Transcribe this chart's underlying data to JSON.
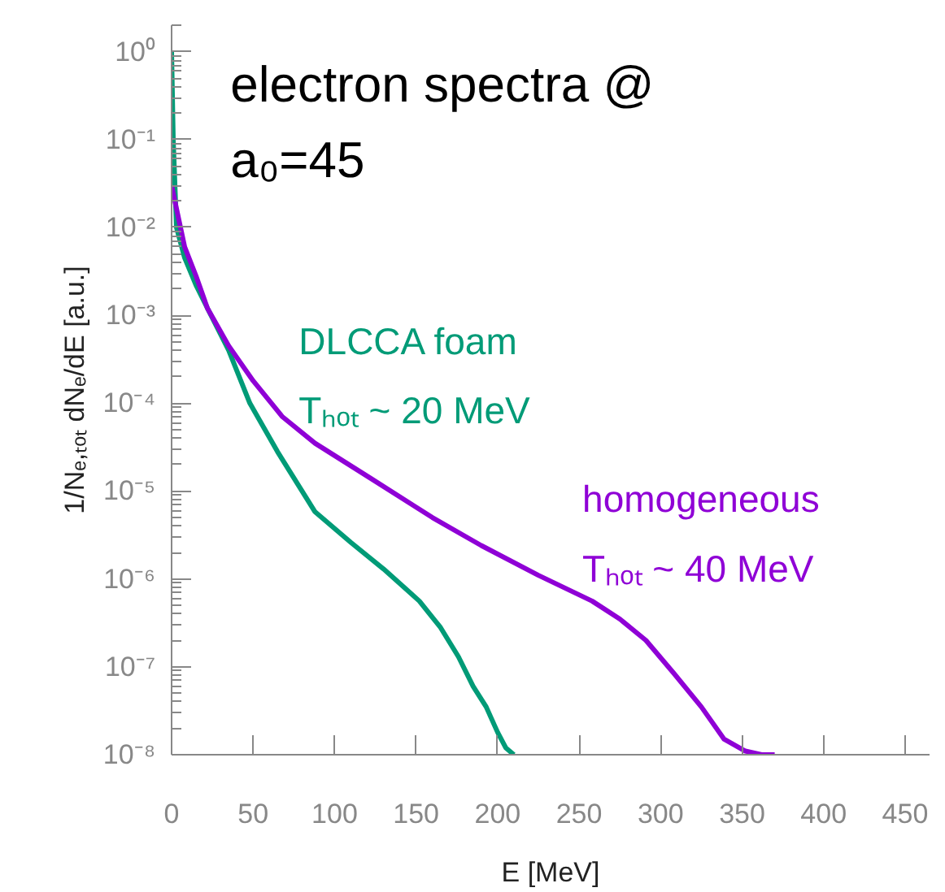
{
  "chart_data": {
    "type": "line",
    "title": "electron spectra @ a₀=45",
    "xlabel": "E [MeV]",
    "ylabel": "1/Nₑ,ₜₒₜ dNₑ/dE [a.u.]",
    "log": "y",
    "xlim": [
      0,
      465
    ],
    "ylim": [
      1e-08,
      2
    ],
    "xticks": [
      0,
      50,
      100,
      150,
      200,
      250,
      300,
      350,
      400,
      450
    ],
    "yticks": [
      {
        "value": 1,
        "label": "10⁰"
      },
      {
        "value": 0.1,
        "label": "10⁻¹"
      },
      {
        "value": 0.01,
        "label": "10⁻²"
      },
      {
        "value": 0.001,
        "label": "10⁻³"
      },
      {
        "value": 0.0001,
        "label": "10⁻⁴"
      },
      {
        "value": 1e-05,
        "label": "10⁻⁵"
      },
      {
        "value": 1e-06,
        "label": "10⁻⁶"
      },
      {
        "value": 1e-07,
        "label": "10⁻⁷"
      },
      {
        "value": 1e-08,
        "label": "10⁻⁸"
      }
    ],
    "grid": false,
    "legend": false,
    "series": [
      {
        "name": "DLCCA foam",
        "color": "#009b77",
        "x": [
          0,
          1,
          3,
          8,
          15,
          22,
          35,
          48,
          65,
          88,
          110,
          130,
          152,
          165,
          176,
          185,
          193,
          200,
          205,
          210
        ],
        "values": [
          1,
          0.1,
          0.01,
          0.0045,
          0.0022,
          0.0012,
          0.0004,
          0.0001,
          2.8e-05,
          5.8e-06,
          2.6e-06,
          1.3e-06,
          5.6e-07,
          2.8e-07,
          1.3e-07,
          6e-08,
          3.5e-08,
          1.8e-08,
          1.2e-08,
          1e-08
        ]
      },
      {
        "name": "homogeneous",
        "color": "#8f00d6",
        "x": [
          0,
          2,
          8,
          15,
          22,
          35,
          50,
          68,
          88,
          122,
          160,
          190,
          225,
          258,
          275,
          291,
          308,
          325,
          339,
          352,
          362,
          370
        ],
        "values": [
          0.03,
          0.02,
          0.006,
          0.0028,
          0.0012,
          0.00045,
          0.00018,
          7e-05,
          3.5e-05,
          1.4e-05,
          5e-06,
          2.4e-06,
          1.1e-06,
          5.6e-07,
          3.5e-07,
          2e-07,
          8.5e-08,
          3.5e-08,
          1.5e-08,
          1.1e-08,
          1e-08,
          1e-08
        ]
      }
    ],
    "annotations": [
      "Tₕₒₜ ~ 20 MeV",
      "Tₕₒₜ ~ 40 MeV"
    ]
  }
}
